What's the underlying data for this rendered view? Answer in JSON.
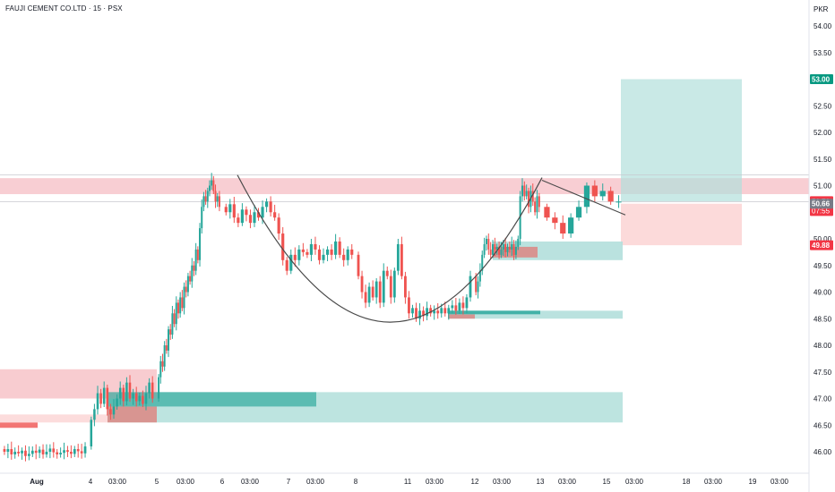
{
  "header": {
    "title": "FAUJI CEMENT CO.LTD · 15 · PSX",
    "currency": "PKR"
  },
  "colors": {
    "up": "#26a69a",
    "down": "#ef5350",
    "resistance_zone": "#f7c6cb",
    "target_zone": "#b2dfdb",
    "stop_zone": "#fbd3d3",
    "curve": "#4a4a4a",
    "axis_text": "#131722"
  },
  "chart_data": {
    "type": "candlestick",
    "title": "FAUJI CEMENT CO.LTD · 15 · PSX",
    "ylim": [
      45.8,
      54.2
    ],
    "y_ticks": [
      46.0,
      46.5,
      47.0,
      47.5,
      48.0,
      48.5,
      49.0,
      49.5,
      50.0,
      50.5,
      51.0,
      51.5,
      52.0,
      52.5,
      53.0,
      53.5,
      54.0
    ],
    "y_tick_labels": [
      "46.00",
      "46.50",
      "47.00",
      "47.50",
      "48.00",
      "48.50",
      "49.00",
      "49.50",
      "50.00",
      "50.50",
      "51.00",
      "51.50",
      "52.00",
      "52.50",
      "53.00",
      "53.50",
      "54.00"
    ],
    "x_tick_labels": [
      "Aug",
      "4",
      "03:00",
      "5",
      "03:00",
      "6",
      "03:00",
      "7",
      "03:00",
      "8",
      "11",
      "03:00",
      "12",
      "03:00",
      "13",
      "03:00",
      "15",
      "03:00",
      "18",
      "03:00",
      "19",
      "03:00"
    ],
    "price_labels": [
      {
        "value": 53.0,
        "text": "53.00",
        "color": "#089981"
      },
      {
        "value": 50.7,
        "text": "50.70",
        "text2": "07:55",
        "color": "#f23645"
      },
      {
        "value": 50.66,
        "text": "50.66",
        "color": "#787b86"
      },
      {
        "value": 49.88,
        "text": "49.88",
        "color": "#f23645"
      }
    ],
    "zones": [
      {
        "name": "resistance",
        "y_range": [
          50.84,
          51.14
        ]
      },
      {
        "name": "demand",
        "y_range": [
          46.55,
          47.12
        ]
      },
      {
        "name": "long-target",
        "y_range": [
          50.7,
          53.0
        ]
      },
      {
        "name": "long-stop",
        "y_range": [
          49.88,
          50.66
        ]
      }
    ],
    "candle_series": [
      {
        "start": 46.05,
        "closes": [
          46.0,
          46.05,
          45.95,
          46.0,
          45.97,
          46.02,
          45.92,
          45.96,
          46.02,
          45.98,
          46.04,
          45.95,
          46.0,
          46.06,
          45.99,
          45.95,
          45.98,
          46.03,
          46.0,
          45.96,
          46.05,
          46.01,
          45.97,
          46.1
        ]
      },
      {
        "start": 46.1,
        "closes": [
          46.6,
          46.8,
          47.1,
          46.9,
          47.2,
          46.8,
          46.7,
          46.85,
          47.0,
          47.2,
          46.95,
          47.3,
          47.0,
          47.1,
          46.95,
          47.05,
          46.9,
          47.1,
          47.3,
          47.0
        ]
      },
      {
        "start": 47.0,
        "closes": [
          47.4,
          47.7,
          47.6,
          48.0,
          47.9,
          48.3,
          48.2,
          48.6,
          48.4,
          48.8,
          48.6,
          48.9,
          48.7,
          49.1,
          49.0,
          49.3,
          49.2,
          49.5,
          49.4,
          49.8,
          49.6,
          50.2,
          50.6,
          50.8,
          50.7,
          50.9,
          51.0,
          51.1,
          50.9,
          50.7,
          50.8,
          50.6
        ]
      },
      {
        "start": 50.6,
        "closes": [
          50.5,
          50.65,
          50.4,
          50.3,
          50.55,
          50.45,
          50.3,
          50.5,
          50.4,
          50.6,
          50.7,
          50.5,
          50.4,
          50.1,
          49.6,
          49.4,
          49.7,
          49.6,
          49.8,
          49.75,
          49.7,
          49.9,
          49.8,
          49.6,
          49.7,
          49.8,
          49.7,
          49.95,
          49.7,
          49.6,
          49.8,
          49.7
        ]
      },
      {
        "start": 49.7,
        "closes": [
          49.3,
          49.0,
          48.8,
          49.1,
          48.9,
          49.2,
          48.8,
          49.4,
          49.3,
          48.9,
          49.4,
          49.9,
          49.3,
          48.9,
          48.6,
          48.7,
          48.5,
          48.65,
          48.55,
          48.7,
          48.6,
          48.65,
          48.6,
          48.7,
          48.6,
          48.7,
          48.75,
          48.65,
          48.8,
          48.7,
          48.9,
          49.3
        ]
      },
      {
        "start": 49.3,
        "closes": [
          49.0,
          49.2,
          49.4,
          49.7,
          49.9,
          50.0,
          49.8,
          49.7,
          49.9,
          49.8,
          49.85,
          49.7,
          49.8,
          49.9,
          49.75,
          49.85,
          49.8,
          49.9,
          49.7,
          49.85,
          50.0,
          50.8,
          51.0,
          50.8,
          50.9,
          50.6,
          50.9,
          50.7,
          50.5,
          50.8,
          50.6
        ]
      },
      {
        "start": 50.6,
        "closes": [
          50.4,
          50.3,
          50.1,
          50.4,
          50.6,
          51.0,
          50.8,
          50.9,
          50.7,
          50.7
        ]
      }
    ],
    "annotations": [
      {
        "name": "cup-curve",
        "type": "arc",
        "from": 51.2,
        "bottom": 48.35,
        "to": 51.15
      },
      {
        "name": "handle-trendline",
        "type": "line",
        "from": 51.1,
        "to": 50.45
      }
    ]
  }
}
